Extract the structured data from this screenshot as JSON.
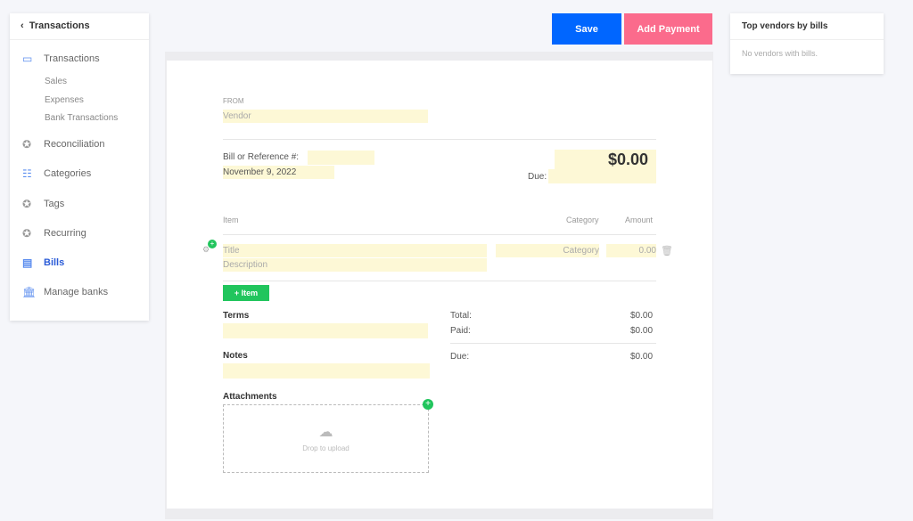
{
  "sidebar": {
    "back_title": "Transactions",
    "items": [
      {
        "label": "Transactions",
        "icon": "money-icon"
      },
      {
        "label": "Reconciliation",
        "icon": "wrench-icon"
      },
      {
        "label": "Categories",
        "icon": "list-icon"
      },
      {
        "label": "Tags",
        "icon": "tag-icon"
      },
      {
        "label": "Recurring",
        "icon": "recurring-icon"
      },
      {
        "label": "Bills",
        "icon": "bill-icon"
      },
      {
        "label": "Manage banks",
        "icon": "bank-icon"
      }
    ],
    "subitems": [
      "Sales",
      "Expenses",
      "Bank Transactions"
    ]
  },
  "toolbar": {
    "save": "Save",
    "add_payment": "Add Payment",
    "save_color": "#0066ff",
    "payment_color": "#fb6b8c"
  },
  "bill": {
    "from_label": "FROM",
    "vendor_placeholder": "Vendor",
    "ref_label": "Bill or Reference #:",
    "date": "November 9, 2022",
    "total_big": "$0.00",
    "due_label": "Due:",
    "col_item": "Item",
    "col_category": "Category",
    "col_amount": "Amount",
    "row": {
      "title": "Title",
      "description": "Description",
      "category": "Category",
      "amount": "0.00"
    },
    "add_item": "+ Item",
    "terms": "Terms",
    "notes": "Notes",
    "attachments": "Attachments",
    "drop": "Drop to upload",
    "totals": [
      {
        "label": "Total:",
        "value": "$0.00"
      },
      {
        "label": "Paid:",
        "value": "$0.00"
      },
      {
        "label": "Due:",
        "value": "$0.00"
      }
    ]
  },
  "vendors": {
    "title": "Top vendors by bills",
    "empty": "No vendors with bills."
  }
}
